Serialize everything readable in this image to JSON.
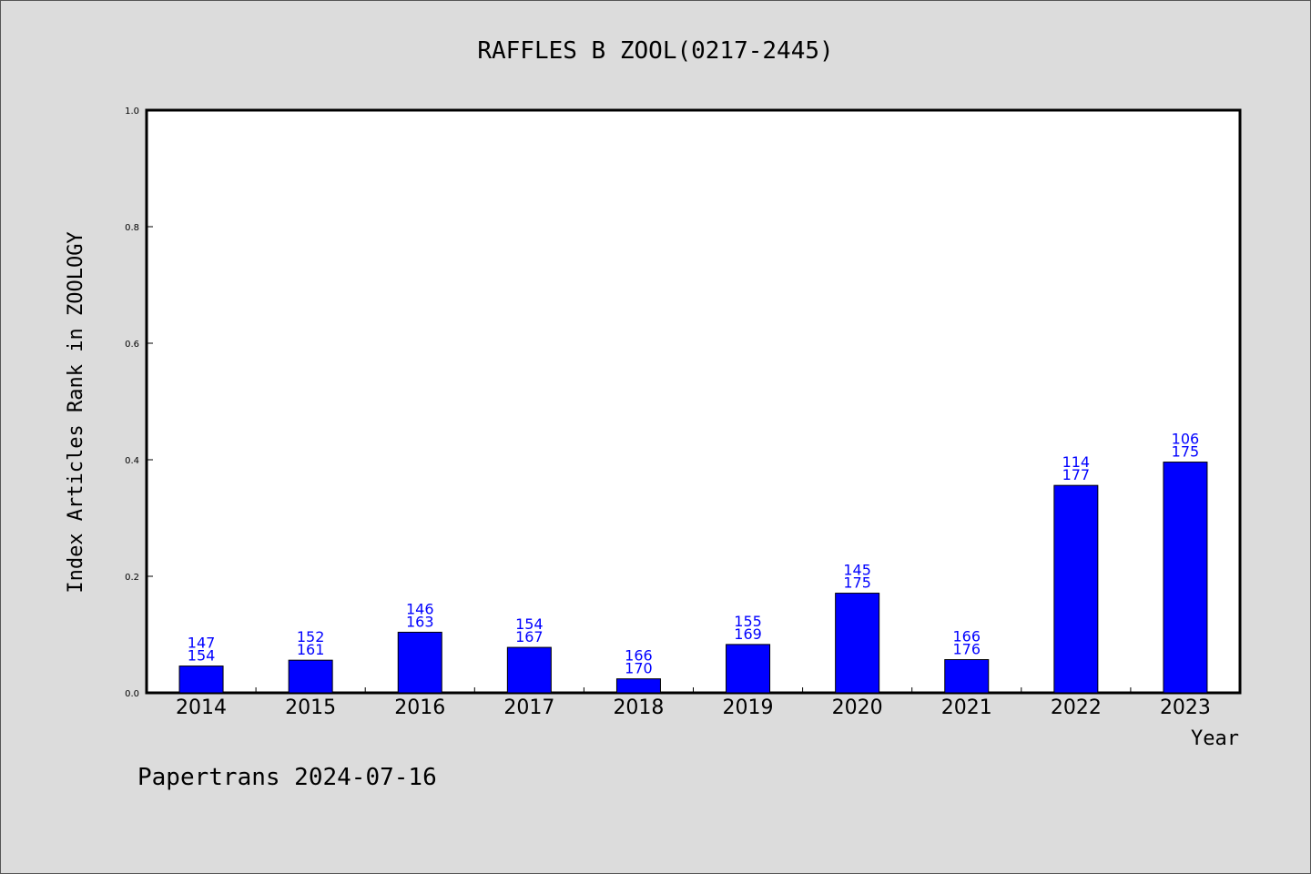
{
  "chart_data": {
    "type": "bar",
    "title": "RAFFLES B ZOOL(0217-2445)",
    "xlabel": "Year",
    "ylabel": "Index Articles Rank in ZOOLOGY",
    "ylim": [
      0,
      1.0
    ],
    "yticks": [
      "0.0",
      "0.2",
      "0.4",
      "0.6",
      "0.8",
      "1.0"
    ],
    "categories": [
      "2014",
      "2015",
      "2016",
      "2017",
      "2018",
      "2019",
      "2020",
      "2021",
      "2022",
      "2023"
    ],
    "values": [
      0.046,
      0.056,
      0.104,
      0.078,
      0.024,
      0.083,
      0.171,
      0.057,
      0.356,
      0.396
    ],
    "rank": [
      "147",
      "152",
      "146",
      "154",
      "166",
      "155",
      "145",
      "166",
      "114",
      "106"
    ],
    "total": [
      "154",
      "161",
      "163",
      "167",
      "170",
      "169",
      "175",
      "176",
      "177",
      "175"
    ],
    "bar_color": "#0000ff",
    "label_color": "#0000ff",
    "grid": false,
    "legend": "none"
  },
  "footer": "Papertrans 2024-07-16"
}
